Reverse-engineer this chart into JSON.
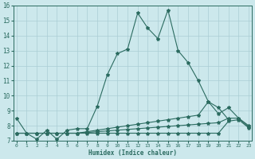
{
  "xlabel": "Humidex (Indice chaleur)",
  "xlim": [
    -0.3,
    23.3
  ],
  "ylim": [
    7,
    16
  ],
  "yticks": [
    7,
    8,
    9,
    10,
    11,
    12,
    13,
    14,
    15,
    16
  ],
  "xticks": [
    0,
    1,
    2,
    3,
    4,
    5,
    6,
    7,
    8,
    9,
    10,
    11,
    12,
    13,
    14,
    15,
    16,
    17,
    18,
    19,
    20,
    21,
    22,
    23
  ],
  "bg_color": "#cce8ec",
  "line_color": "#2b6b60",
  "grid_color": "#aacdd4",
  "series": [
    {
      "x": [
        0,
        1,
        2,
        3,
        4,
        5,
        6,
        7,
        8,
        9,
        10,
        11,
        12,
        13,
        14,
        15,
        16,
        17,
        18,
        19,
        20,
        21
      ],
      "y": [
        8.5,
        7.5,
        7.1,
        7.7,
        7.1,
        7.7,
        7.8,
        7.8,
        9.3,
        11.4,
        12.8,
        13.1,
        15.5,
        14.5,
        13.8,
        15.7,
        13.0,
        12.2,
        11.0,
        9.6,
        9.2,
        8.4
      ]
    },
    {
      "x": [
        0,
        1,
        2,
        3,
        4,
        5,
        6,
        7,
        8,
        9,
        10,
        11,
        12,
        13,
        14,
        15,
        16,
        17,
        18,
        19,
        20,
        21,
        22,
        23
      ],
      "y": [
        7.5,
        7.5,
        7.5,
        7.5,
        7.5,
        7.5,
        7.5,
        7.6,
        7.7,
        7.8,
        7.9,
        8.0,
        8.1,
        8.2,
        8.3,
        8.4,
        8.5,
        8.6,
        8.7,
        9.6,
        8.8,
        9.2,
        8.5,
        8.0
      ]
    },
    {
      "x": [
        0,
        1,
        2,
        3,
        4,
        5,
        6,
        7,
        8,
        9,
        10,
        11,
        12,
        13,
        14,
        15,
        16,
        17,
        18,
        19,
        20,
        21,
        22,
        23
      ],
      "y": [
        7.5,
        7.5,
        7.5,
        7.5,
        7.5,
        7.5,
        7.5,
        7.55,
        7.6,
        7.65,
        7.7,
        7.75,
        7.8,
        7.85,
        7.9,
        7.95,
        8.0,
        8.05,
        8.1,
        8.15,
        8.2,
        8.5,
        8.5,
        7.9
      ]
    },
    {
      "x": [
        0,
        1,
        2,
        3,
        4,
        5,
        6,
        7,
        8,
        9,
        10,
        11,
        12,
        13,
        14,
        15,
        16,
        17,
        18,
        19,
        20,
        21,
        22,
        23
      ],
      "y": [
        7.5,
        7.5,
        7.5,
        7.5,
        7.5,
        7.5,
        7.5,
        7.5,
        7.5,
        7.5,
        7.5,
        7.5,
        7.5,
        7.5,
        7.5,
        7.5,
        7.5,
        7.5,
        7.5,
        7.5,
        7.5,
        8.3,
        8.4,
        7.85
      ]
    }
  ]
}
